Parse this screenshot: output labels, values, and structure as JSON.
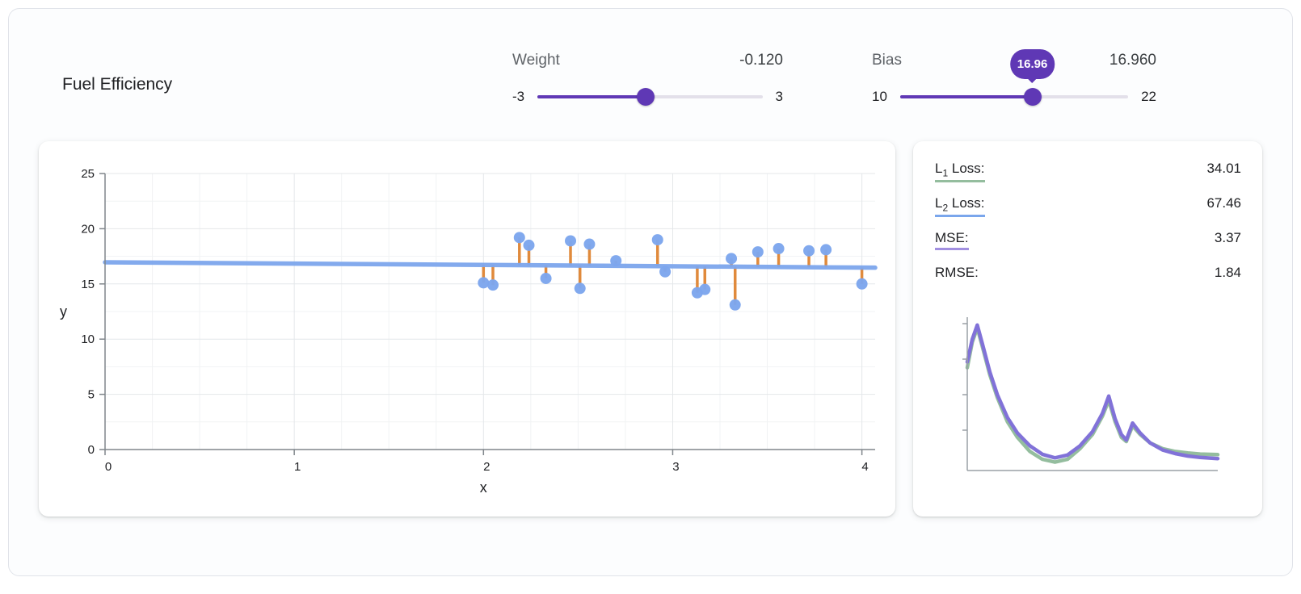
{
  "widget": {
    "title": "Fuel Efficiency"
  },
  "controls": {
    "weight": {
      "label": "Weight",
      "value_display": "-0.120",
      "value": -0.12,
      "min": -3,
      "max": 3,
      "min_label": "-3",
      "max_label": "3"
    },
    "bias": {
      "label": "Bias",
      "value_display": "16.960",
      "value": 16.96,
      "min": 10,
      "max": 22,
      "min_label": "10",
      "max_label": "22",
      "tooltip": "16.96"
    }
  },
  "loss_panel": {
    "metrics": [
      {
        "prefix": "L",
        "sub": "1",
        "suffix": " Loss:",
        "value": "34.01",
        "underline": "#94bd9e"
      },
      {
        "prefix": "L",
        "sub": "2",
        "suffix": " Loss:",
        "value": "67.46",
        "underline": "#7aa6ec"
      },
      {
        "prefix": "MSE:",
        "sub": "",
        "suffix": "",
        "value": "3.37",
        "underline": "#a18fe0"
      },
      {
        "prefix": "RMSE:",
        "sub": "",
        "suffix": "",
        "value": "1.84",
        "underline": null
      }
    ]
  },
  "colors": {
    "accent_purple": "#5f38b5",
    "point_blue": "#7da6ed",
    "model_line_blue": "#7da6ed",
    "residual_orange": "#e08a3c",
    "loss_green": "#94bd9e",
    "loss_purple": "#8172d8"
  },
  "chart_data": [
    {
      "type": "scatter",
      "title": "Fuel Efficiency data with model line and residuals",
      "xlabel": "x",
      "ylabel": "y",
      "xlim": [
        0,
        4.07
      ],
      "ylim": [
        0,
        25
      ],
      "xticks": [
        0,
        1,
        2,
        3,
        4
      ],
      "yticks": [
        0,
        5,
        10,
        15,
        20,
        25
      ],
      "grid": true,
      "point_color": "#7da6ed",
      "line_color": "#7da6ed",
      "residual_color": "#e08a3c",
      "model_line": {
        "weight": -0.12,
        "bias": 16.96
      },
      "points": [
        [
          2.0,
          15.1
        ],
        [
          2.05,
          14.9
        ],
        [
          2.19,
          19.2
        ],
        [
          2.24,
          18.5
        ],
        [
          2.33,
          15.5
        ],
        [
          2.46,
          18.9
        ],
        [
          2.51,
          14.6
        ],
        [
          2.56,
          18.6
        ],
        [
          2.7,
          17.1
        ],
        [
          2.92,
          19.0
        ],
        [
          2.96,
          16.1
        ],
        [
          3.13,
          14.2
        ],
        [
          3.17,
          14.5
        ],
        [
          3.31,
          17.3
        ],
        [
          3.33,
          13.1
        ],
        [
          3.45,
          17.9
        ],
        [
          3.56,
          18.2
        ],
        [
          3.72,
          18.0
        ],
        [
          3.81,
          18.1
        ],
        [
          4.0,
          15.0
        ]
      ]
    },
    {
      "type": "line",
      "title": "Loss curves",
      "xlim": [
        0,
        1
      ],
      "ylim": [
        0,
        10
      ],
      "yticks": [
        2.5,
        5,
        7.5,
        10
      ],
      "series": [
        {
          "name": "L1-loss-curve",
          "color": "#94bd9e",
          "points": [
            [
              0,
              6.9
            ],
            [
              0.02,
              8.7
            ],
            [
              0.04,
              9.7
            ],
            [
              0.06,
              8.4
            ],
            [
              0.09,
              6.4
            ],
            [
              0.12,
              4.8
            ],
            [
              0.16,
              3.1
            ],
            [
              0.2,
              2.0
            ],
            [
              0.25,
              1.0
            ],
            [
              0.3,
              0.45
            ],
            [
              0.35,
              0.25
            ],
            [
              0.4,
              0.45
            ],
            [
              0.45,
              1.2
            ],
            [
              0.5,
              2.2
            ],
            [
              0.54,
              3.5
            ],
            [
              0.565,
              4.6
            ],
            [
              0.59,
              3.1
            ],
            [
              0.615,
              2.0
            ],
            [
              0.635,
              1.7
            ],
            [
              0.66,
              2.8
            ],
            [
              0.69,
              2.2
            ],
            [
              0.73,
              1.6
            ],
            [
              0.78,
              1.2
            ],
            [
              0.83,
              1.0
            ],
            [
              0.88,
              0.9
            ],
            [
              0.93,
              0.82
            ],
            [
              1,
              0.78
            ]
          ]
        },
        {
          "name": "MSE-loss-curve",
          "color": "#8172d8",
          "points": [
            [
              0,
              7.3
            ],
            [
              0.02,
              8.9
            ],
            [
              0.04,
              9.9
            ],
            [
              0.06,
              8.6
            ],
            [
              0.09,
              6.6
            ],
            [
              0.12,
              5.0
            ],
            [
              0.16,
              3.4
            ],
            [
              0.2,
              2.3
            ],
            [
              0.25,
              1.4
            ],
            [
              0.3,
              0.8
            ],
            [
              0.35,
              0.55
            ],
            [
              0.4,
              0.75
            ],
            [
              0.45,
              1.4
            ],
            [
              0.5,
              2.4
            ],
            [
              0.54,
              3.7
            ],
            [
              0.565,
              4.9
            ],
            [
              0.59,
              3.3
            ],
            [
              0.615,
              2.2
            ],
            [
              0.635,
              1.8
            ],
            [
              0.66,
              3.0
            ],
            [
              0.69,
              2.3
            ],
            [
              0.73,
              1.6
            ],
            [
              0.78,
              1.1
            ],
            [
              0.83,
              0.85
            ],
            [
              0.88,
              0.68
            ],
            [
              0.93,
              0.58
            ],
            [
              1,
              0.5
            ]
          ]
        }
      ]
    }
  ]
}
